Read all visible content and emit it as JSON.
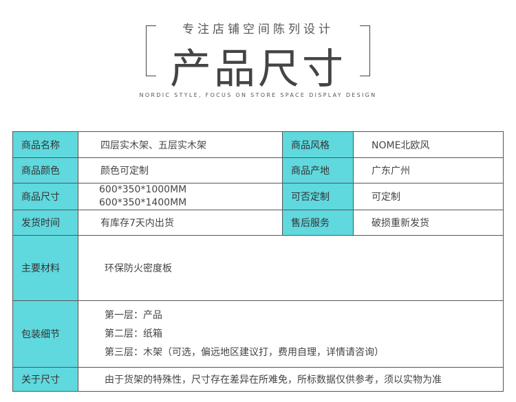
{
  "header": {
    "subtitle": "专注店铺空间陈列设计",
    "title": "产品尺寸",
    "english": "NORDIC STYLE, FOCUS ON STORE SPACE DISPLAY DESIGN"
  },
  "colors": {
    "label_bg": "#5fd8de",
    "border": "#555555"
  },
  "rows": [
    {
      "l1": "商品名称",
      "v1": "四层实木架、五层实木架",
      "l2": "商品风格",
      "v2": "NOME北欧风"
    },
    {
      "l1": "商品颜色",
      "v1": "颜色可定制",
      "l2": "商品产地",
      "v2": "广东广州"
    },
    {
      "l1": "商品尺寸",
      "v1a": "600*350*1000MM",
      "v1b": "600*350*1400MM",
      "l2": "可否定制",
      "v2": "可定制"
    },
    {
      "l1": "发货时间",
      "v1": "有库存7天内出货",
      "l2": "售后服务",
      "v2": "破损重新发货"
    }
  ],
  "material": {
    "label": "主要材料",
    "value": "环保防火密度板"
  },
  "packing": {
    "label": "包装细节",
    "lines": [
      "第一层：产品",
      "第二层：纸箱",
      "第三层：木架（可选，偏远地区建议打，费用自理，详情请咨询）"
    ]
  },
  "size_note": {
    "label": "关于尺寸",
    "value": "由于货架的特殊性，尺寸存在差异在所难免，所标数据仅供参考，须以实物为准"
  }
}
